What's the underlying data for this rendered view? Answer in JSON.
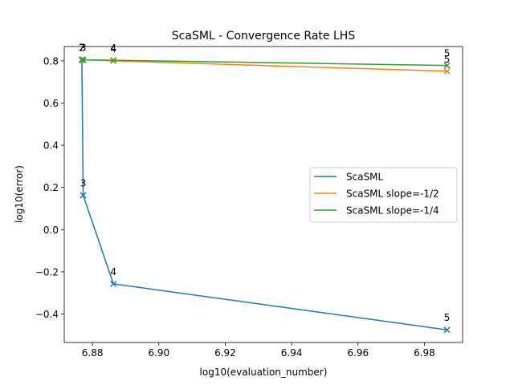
{
  "chart_data": {
    "type": "line",
    "title": "ScaSML - Convergence Rate LHS",
    "xlabel": "log10(evaluation_number)",
    "ylabel": "log10(error)",
    "xlim": [
      6.8715,
      6.9915
    ],
    "ylim": [
      -0.535,
      0.868
    ],
    "xticks": [
      "6.88",
      "6.90",
      "6.92",
      "6.94",
      "6.96",
      "6.98"
    ],
    "yticks": [
      "−0.4",
      "−0.2",
      "0.0",
      "0.2",
      "0.4",
      "0.6",
      "0.8"
    ],
    "legend_position": "center-right",
    "series": [
      {
        "name": "ScaSML",
        "color": "#1f77b4",
        "x": [
          6.8768,
          6.8772,
          6.8863,
          6.9868
        ],
        "y": [
          0.805,
          0.163,
          -0.257,
          -0.475
        ],
        "labels": [
          "2",
          "3",
          "4",
          "5"
        ]
      },
      {
        "name": "ScaSML slope=-1/2",
        "color": "#ff7f0e",
        "x": [
          6.8768,
          6.8772,
          6.8863,
          6.9868
        ],
        "y": [
          0.805,
          0.805,
          0.8,
          0.751
        ],
        "labels": [
          "2",
          "3",
          "4",
          "5"
        ]
      },
      {
        "name": "ScaSML slope=-1/4",
        "color": "#2ca02c",
        "x": [
          6.8768,
          6.8772,
          6.8863,
          6.9868
        ],
        "y": [
          0.805,
          0.805,
          0.803,
          0.778
        ],
        "labels": [
          "2",
          "3",
          "4",
          "5"
        ]
      }
    ]
  }
}
